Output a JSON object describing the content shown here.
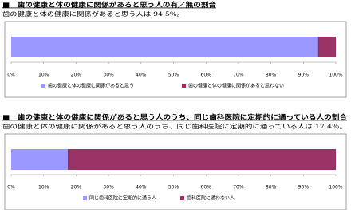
{
  "chart_data": [
    {
      "type": "bar",
      "orientation": "horizontal",
      "stacked": true,
      "title": "■　歯の健康と体の健康に関係があると思う人の有／無の割合",
      "subtitle": "歯の健康と体の健康に関係があると思う人は 94.5%。",
      "series": [
        {
          "name": "歯の健康と体の健康に関係があると思う",
          "color": "#9999ff",
          "values": [
            94.5
          ]
        },
        {
          "name": "歯の健康と体の健康に関係があると思わない",
          "color": "#993366",
          "values": [
            5.5
          ]
        }
      ],
      "xlim": [
        0,
        100
      ],
      "xticks": [
        {
          "value": 0,
          "label": "0%"
        },
        {
          "value": 10,
          "label": "10%"
        },
        {
          "value": 20,
          "label": "20%"
        },
        {
          "value": 30,
          "label": "30%"
        },
        {
          "value": 40,
          "label": "40%"
        },
        {
          "value": 50,
          "label": "50%"
        },
        {
          "value": 60,
          "label": "60%"
        },
        {
          "value": 70,
          "label": "70%"
        },
        {
          "value": 80,
          "label": "80%"
        },
        {
          "value": 90,
          "label": "90%"
        },
        {
          "value": 100,
          "label": "100%"
        }
      ],
      "legend": "bottom"
    },
    {
      "type": "bar",
      "orientation": "horizontal",
      "stacked": true,
      "title": "■　歯の健康と体の健康に関係があると思う人のうち、同じ歯科医院に定期的に通っている人の割合",
      "subtitle": "歯の健康と体の健康に関係があると思う人のうち、同じ歯科医院に定期的に通っている人は 17.4％。",
      "series": [
        {
          "name": "同じ歯科医院に定期的に通う人",
          "color": "#9999ff",
          "values": [
            17.4
          ]
        },
        {
          "name": "歯科医院に通わない人",
          "color": "#993366",
          "values": [
            82.6
          ]
        }
      ],
      "xlim": [
        0,
        100
      ],
      "xticks": [
        {
          "value": 0,
          "label": "0%"
        },
        {
          "value": 10,
          "label": "10%"
        },
        {
          "value": 20,
          "label": "20%"
        },
        {
          "value": 30,
          "label": "30%"
        },
        {
          "value": 40,
          "label": "40%"
        },
        {
          "value": 50,
          "label": "50%"
        },
        {
          "value": 60,
          "label": "60%"
        },
        {
          "value": 70,
          "label": "70%"
        },
        {
          "value": 80,
          "label": "80%"
        },
        {
          "value": 90,
          "label": "90%"
        },
        {
          "value": 100,
          "label": "100%"
        }
      ],
      "legend": "bottom"
    }
  ]
}
